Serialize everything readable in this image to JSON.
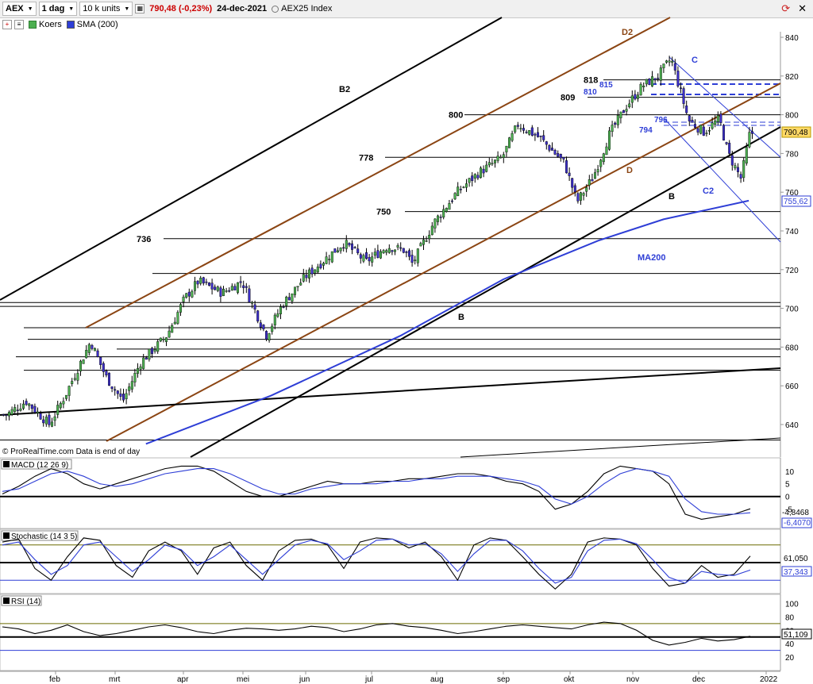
{
  "toolbar": {
    "ticker": "AEX",
    "timeframe": "1 dag",
    "units": "10 k units",
    "price_change": "790,48 (-0,23%)",
    "date": "24-dec-2021",
    "index_name": "AEX25 Index"
  },
  "legend": {
    "price_label": "Koers",
    "sma_label": "SMA (200)"
  },
  "panels": {
    "macd_label": "MACD (12 26 9)",
    "stoch_label": "Stochastic (14 3 5)",
    "rsi_label": "RSI (14)"
  },
  "watermark": "© ProRealTime.com  Data is end of day",
  "colors": {
    "up_candle": "#4caf50",
    "down_candle": "#3b2ec8",
    "sma": "#2e3ed6",
    "channel": "#8b4513",
    "trend": "#000000",
    "downtrend": "#2e3ed6",
    "price_tag": "#ffd966",
    "stoch_upper": "#6b6b00"
  },
  "chart_data": [
    {
      "type": "candlestick",
      "ylim": [
        630,
        850
      ],
      "x_tick_labels": [
        "feb",
        "mrt",
        "apr",
        "mei",
        "jun",
        "jul",
        "aug",
        "sep",
        "okt",
        "nov",
        "dec",
        "2022"
      ],
      "y_tick_labels": [
        "640",
        "660",
        "680",
        "700",
        "720",
        "740",
        "760",
        "780",
        "800",
        "820",
        "840"
      ],
      "y_ticks": [
        640,
        660,
        680,
        700,
        720,
        740,
        760,
        780,
        800,
        820,
        840
      ],
      "last_price_label": "790,48",
      "sma_label_value": "755,62",
      "levels": [
        736,
        750,
        778,
        800,
        809,
        818
      ],
      "level_labels": [
        "736",
        "750",
        "778",
        "800",
        "809",
        "818"
      ],
      "blue_levels": [
        796,
        794,
        810,
        815
      ],
      "blue_level_labels": [
        "796",
        "794",
        "810",
        "815"
      ],
      "annotations": [
        "B2",
        "D2",
        "B",
        "D",
        "C",
        "C2",
        "MA200"
      ],
      "close_path": [
        {
          "date": "2021-01-04",
          "close": 645
        },
        {
          "date": "2021-01-15",
          "close": 652
        },
        {
          "date": "2021-01-28",
          "close": 640
        },
        {
          "date": "2021-02-05",
          "close": 655
        },
        {
          "date": "2021-02-17",
          "close": 683
        },
        {
          "date": "2021-02-24",
          "close": 665
        },
        {
          "date": "2021-03-04",
          "close": 652
        },
        {
          "date": "2021-03-12",
          "close": 672
        },
        {
          "date": "2021-03-24",
          "close": 686
        },
        {
          "date": "2021-04-01",
          "close": 705
        },
        {
          "date": "2021-04-08",
          "close": 714
        },
        {
          "date": "2021-04-20",
          "close": 708
        },
        {
          "date": "2021-04-30",
          "close": 714
        },
        {
          "date": "2021-05-12",
          "close": 686
        },
        {
          "date": "2021-05-20",
          "close": 702
        },
        {
          "date": "2021-05-31",
          "close": 716
        },
        {
          "date": "2021-06-10",
          "close": 726
        },
        {
          "date": "2021-06-18",
          "close": 734
        },
        {
          "date": "2021-06-28",
          "close": 724
        },
        {
          "date": "2021-07-08",
          "close": 732
        },
        {
          "date": "2021-07-16",
          "close": 730
        },
        {
          "date": "2021-07-20",
          "close": 723
        },
        {
          "date": "2021-07-30",
          "close": 744
        },
        {
          "date": "2021-08-10",
          "close": 760
        },
        {
          "date": "2021-08-20",
          "close": 770
        },
        {
          "date": "2021-08-31",
          "close": 778
        },
        {
          "date": "2021-09-07",
          "close": 795
        },
        {
          "date": "2021-09-17",
          "close": 788
        },
        {
          "date": "2021-09-28",
          "close": 775
        },
        {
          "date": "2021-10-04",
          "close": 755
        },
        {
          "date": "2021-10-12",
          "close": 768
        },
        {
          "date": "2021-10-20",
          "close": 790
        },
        {
          "date": "2021-10-28",
          "close": 804
        },
        {
          "date": "2021-11-05",
          "close": 815
        },
        {
          "date": "2021-11-12",
          "close": 820
        },
        {
          "date": "2021-11-18",
          "close": 829
        },
        {
          "date": "2021-11-26",
          "close": 797
        },
        {
          "date": "2021-12-03",
          "close": 791
        },
        {
          "date": "2021-12-10",
          "close": 798
        },
        {
          "date": "2021-12-14",
          "close": 780
        },
        {
          "date": "2021-12-20",
          "close": 767
        },
        {
          "date": "2021-12-24",
          "close": 790.48
        }
      ],
      "sma_path": [
        {
          "date": "2021-03-15",
          "value": 630
        },
        {
          "date": "2021-05-15",
          "value": 655
        },
        {
          "date": "2021-07-15",
          "value": 686
        },
        {
          "date": "2021-09-01",
          "value": 715
        },
        {
          "date": "2021-10-15",
          "value": 735
        },
        {
          "date": "2021-11-15",
          "value": 746
        },
        {
          "date": "2021-12-24",
          "value": 755.62
        }
      ]
    },
    {
      "type": "line",
      "name_label": "MACD (12 26 9)",
      "y_tick_labels": [
        "10",
        "5",
        "0",
        "-5"
      ],
      "y_ticks": [
        10,
        5,
        0,
        -5
      ],
      "ylim": [
        -12,
        14
      ],
      "values_labels": [
        "-4,8468",
        "-6,4070"
      ],
      "macd": [
        1,
        4,
        8,
        11,
        9,
        5,
        3,
        5,
        7,
        9,
        11,
        12,
        12,
        10,
        6,
        2,
        0,
        0,
        2,
        4,
        6,
        5,
        5,
        6,
        6,
        7,
        7,
        8,
        9,
        9,
        8,
        6,
        5,
        2,
        -5,
        -3,
        2,
        9,
        12,
        11,
        10,
        5,
        -7,
        -9,
        -8,
        -7,
        -4.85
      ],
      "signal": [
        2,
        3,
        6,
        9,
        10,
        8,
        5,
        4,
        5,
        7,
        9,
        10,
        11,
        11,
        9,
        6,
        3,
        1,
        1,
        3,
        4,
        5,
        5,
        5,
        6,
        6,
        7,
        7,
        8,
        8,
        8,
        7,
        6,
        4,
        -1,
        -3,
        0,
        5,
        9,
        11,
        10,
        8,
        -1,
        -6,
        -7,
        -7,
        -6.41
      ]
    },
    {
      "type": "line",
      "name_label": "Stochastic (14 3 5)",
      "y_tick_labels": [],
      "y_ticks": [],
      "ylim": [
        0,
        100
      ],
      "values_labels": [
        "61,050",
        "37,343"
      ],
      "k": [
        85,
        90,
        40,
        20,
        60,
        92,
        88,
        45,
        25,
        70,
        85,
        70,
        30,
        75,
        85,
        45,
        20,
        70,
        88,
        90,
        80,
        40,
        85,
        92,
        90,
        75,
        85,
        60,
        20,
        80,
        92,
        88,
        60,
        30,
        5,
        30,
        85,
        92,
        90,
        80,
        40,
        10,
        15,
        45,
        25,
        30,
        61.05
      ],
      "d": [
        80,
        85,
        55,
        30,
        45,
        80,
        85,
        60,
        35,
        55,
        80,
        72,
        45,
        60,
        80,
        55,
        30,
        55,
        80,
        88,
        82,
        55,
        70,
        88,
        90,
        80,
        82,
        65,
        35,
        65,
        88,
        88,
        70,
        40,
        15,
        25,
        70,
        88,
        90,
        82,
        55,
        25,
        15,
        35,
        30,
        28,
        37.34
      ],
      "levels": [
        80,
        50,
        20
      ]
    },
    {
      "type": "line",
      "name_label": "RSI (14)",
      "y_tick_labels": [
        "100",
        "80",
        "60",
        "40",
        "20"
      ],
      "y_ticks": [
        100,
        80,
        60,
        40,
        20
      ],
      "ylim": [
        0,
        110
      ],
      "values_labels": [
        "51,109"
      ],
      "rsi": [
        65,
        62,
        55,
        60,
        68,
        58,
        52,
        55,
        60,
        65,
        68,
        64,
        58,
        55,
        60,
        63,
        62,
        60,
        62,
        66,
        64,
        58,
        62,
        68,
        70,
        66,
        64,
        60,
        55,
        58,
        62,
        66,
        68,
        66,
        64,
        62,
        68,
        72,
        70,
        60,
        45,
        38,
        42,
        48,
        44,
        46,
        51.1
      ],
      "levels": [
        70,
        50,
        30
      ]
    }
  ]
}
